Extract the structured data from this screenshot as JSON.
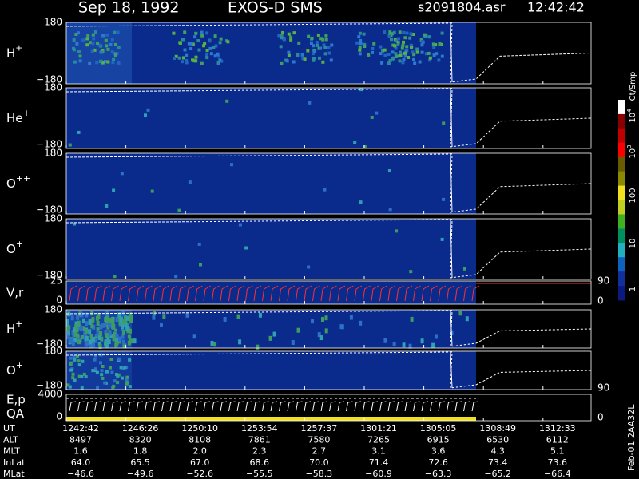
{
  "header": {
    "date": "Sep 18, 1992",
    "instrument": "EXOS-D SMS",
    "file": "s2091804.asr",
    "time": "12:42:42"
  },
  "panels": [
    {
      "label": "H",
      "sup": "+",
      "top": "180",
      "bottom": "−180"
    },
    {
      "label": "He",
      "sup": "+",
      "top": "180",
      "bottom": "−180"
    },
    {
      "label": "O",
      "sup": "++",
      "top": "180",
      "bottom": "−180"
    },
    {
      "label": "O",
      "sup": "+",
      "top": "180",
      "bottom": "−180"
    },
    {
      "label": "V,r",
      "top": "25",
      "bottom": "0",
      "right_top": "90",
      "right_bottom": "0"
    },
    {
      "label": "H",
      "sup": "+",
      "top": "180",
      "bottom": "−180"
    },
    {
      "label": "O",
      "sup": "+",
      "top": "180",
      "bottom": "−180",
      "right_top": "90"
    },
    {
      "label": "E,p",
      "label2": "QA",
      "top": "4000",
      "bottom": "0",
      "right_bottom": "0"
    }
  ],
  "colorbar": {
    "title": "Ct/Smp",
    "labels": [
      {
        "text": "10",
        "sup": "4"
      },
      {
        "text": "10",
        "sup": "3"
      },
      {
        "text": "100"
      },
      {
        "text": "10"
      },
      {
        "text": "1"
      }
    ]
  },
  "table": {
    "rows": [
      {
        "label": "UT",
        "values": [
          "1242:42",
          "1246:26",
          "1250:10",
          "1253:54",
          "1257:37",
          "1301:21",
          "1305:05",
          "1308:49",
          "1312:33"
        ]
      },
      {
        "label": "ALT",
        "values": [
          "8497",
          "8320",
          "8108",
          "7861",
          "7580",
          "7265",
          "6915",
          "6530",
          "6112"
        ]
      },
      {
        "label": "MLT",
        "values": [
          "1.6",
          "1.8",
          "2.0",
          "2.3",
          "2.7",
          "3.1",
          "3.6",
          "4.3",
          "5.1"
        ]
      },
      {
        "label": "InLat",
        "values": [
          "64.0",
          "65.5",
          "67.0",
          "68.6",
          "70.0",
          "71.4",
          "72.6",
          "73.4",
          "73.6"
        ]
      },
      {
        "label": "MLat",
        "values": [
          "−46.6",
          "−49.6",
          "−52.6",
          "−55.5",
          "−58.3",
          "−60.9",
          "−63.3",
          "−65.2",
          "−66.4"
        ]
      }
    ]
  },
  "footer": "Feb-01 2AA32L"
}
